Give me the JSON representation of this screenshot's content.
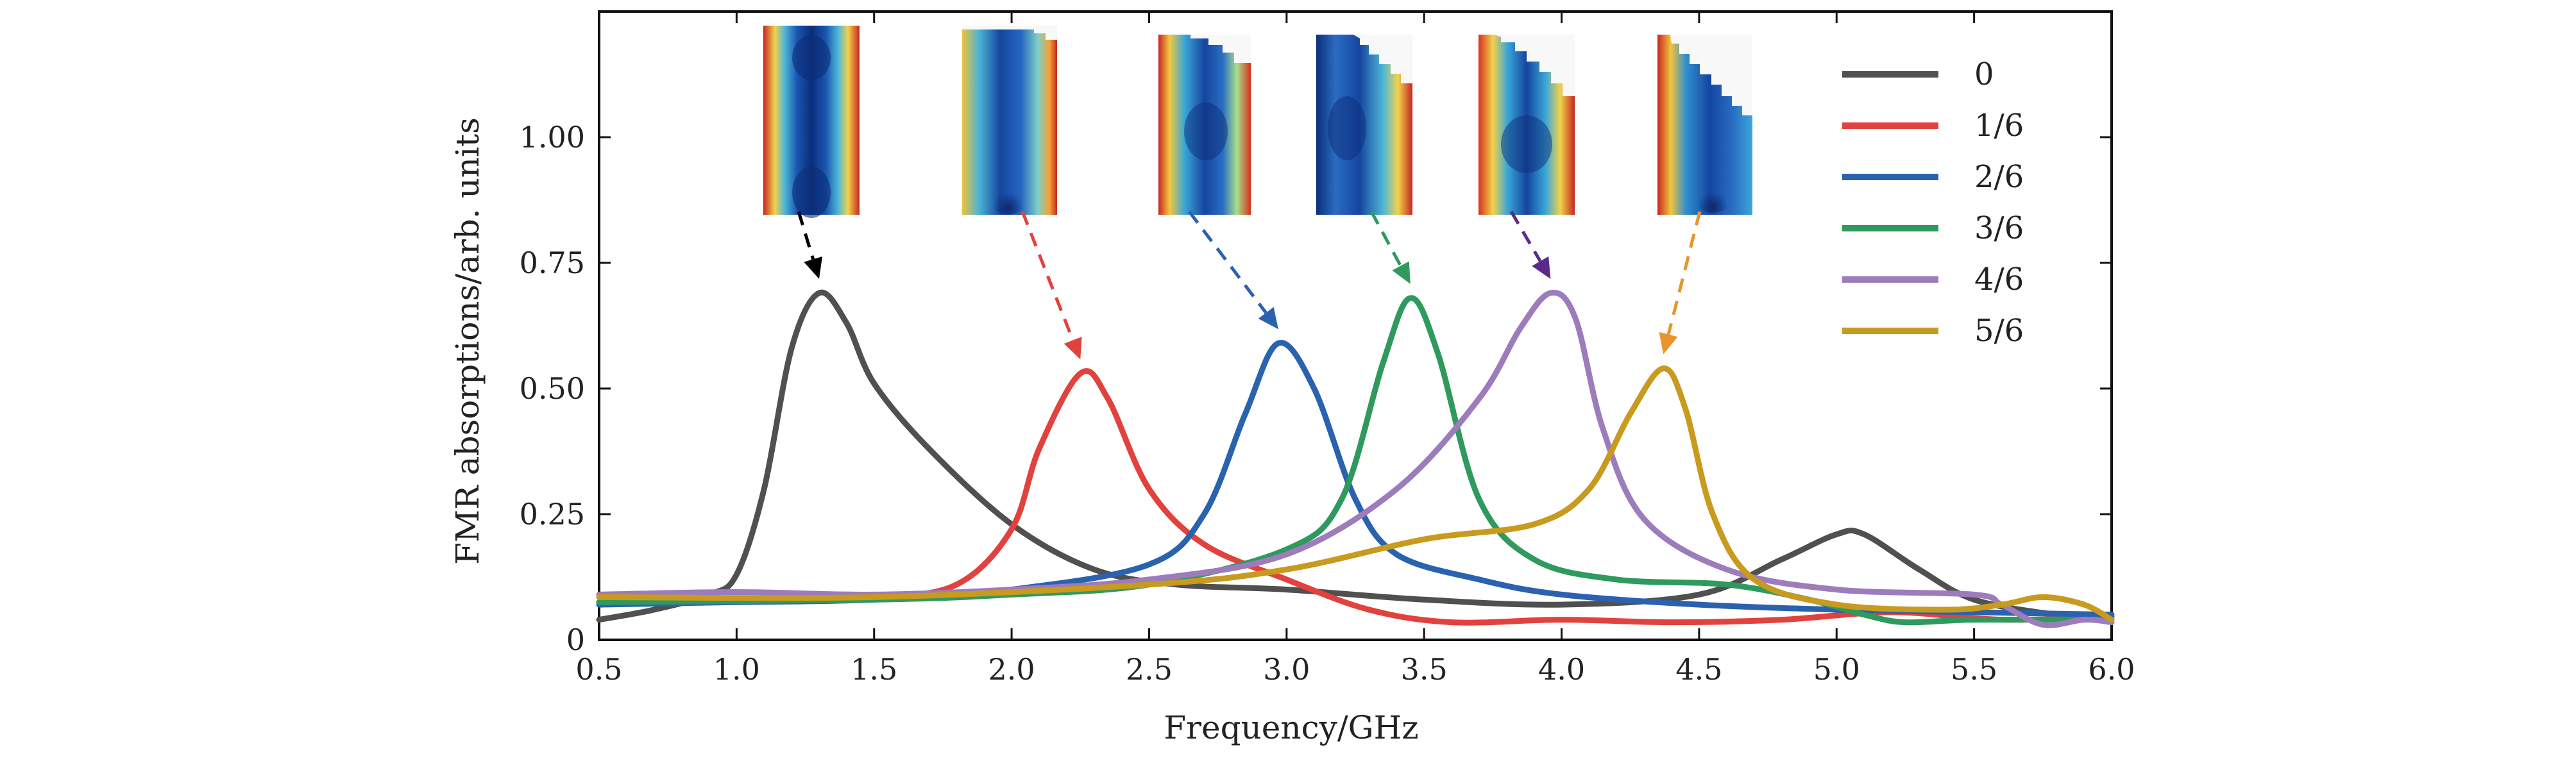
{
  "chart_data": {
    "type": "line",
    "title": "",
    "xlabel": "Frequency/GHz",
    "ylabel": "FMR absorptions/arb. units",
    "xlim": [
      0.5,
      6.0
    ],
    "ylim": [
      0,
      1.25
    ],
    "xticks": [
      "0.5",
      "1.0",
      "1.5",
      "2.0",
      "2.5",
      "3.0",
      "3.5",
      "4.0",
      "4.5",
      "5.0",
      "5.5",
      "6.0"
    ],
    "yticks": [
      "0",
      "0.25",
      "0.50",
      "0.75",
      "1.00"
    ],
    "legend_position": "top-right",
    "series": [
      {
        "name": "0",
        "color": "#505050",
        "points": [
          [
            0.5,
            0.04
          ],
          [
            0.7,
            0.06
          ],
          [
            0.9,
            0.09
          ],
          [
            1.0,
            0.13
          ],
          [
            1.1,
            0.3
          ],
          [
            1.2,
            0.58
          ],
          [
            1.3,
            0.69
          ],
          [
            1.4,
            0.63
          ],
          [
            1.5,
            0.51
          ],
          [
            1.7,
            0.38
          ],
          [
            2.0,
            0.23
          ],
          [
            2.3,
            0.14
          ],
          [
            2.6,
            0.11
          ],
          [
            3.0,
            0.1
          ],
          [
            3.5,
            0.08
          ],
          [
            4.0,
            0.07
          ],
          [
            4.5,
            0.09
          ],
          [
            4.8,
            0.16
          ],
          [
            5.0,
            0.21
          ],
          [
            5.1,
            0.21
          ],
          [
            5.3,
            0.14
          ],
          [
            5.5,
            0.08
          ],
          [
            5.8,
            0.05
          ],
          [
            6.0,
            0.045
          ]
        ]
      },
      {
        "name": "1/6",
        "color": "#e2423e",
        "points": [
          [
            0.5,
            0.075
          ],
          [
            1.0,
            0.08
          ],
          [
            1.5,
            0.085
          ],
          [
            1.8,
            0.11
          ],
          [
            2.0,
            0.22
          ],
          [
            2.1,
            0.38
          ],
          [
            2.25,
            0.53
          ],
          [
            2.35,
            0.48
          ],
          [
            2.5,
            0.3
          ],
          [
            2.7,
            0.19
          ],
          [
            3.0,
            0.12
          ],
          [
            3.3,
            0.06
          ],
          [
            3.6,
            0.035
          ],
          [
            4.0,
            0.04
          ],
          [
            4.4,
            0.035
          ],
          [
            4.8,
            0.04
          ],
          [
            5.2,
            0.055
          ],
          [
            5.6,
            0.04
          ],
          [
            6.0,
            0.045
          ]
        ]
      },
      {
        "name": "2/6",
        "color": "#2a62b0",
        "points": [
          [
            0.5,
            0.07
          ],
          [
            1.0,
            0.075
          ],
          [
            1.5,
            0.08
          ],
          [
            2.0,
            0.1
          ],
          [
            2.5,
            0.15
          ],
          [
            2.7,
            0.25
          ],
          [
            2.85,
            0.45
          ],
          [
            2.97,
            0.59
          ],
          [
            3.1,
            0.5
          ],
          [
            3.25,
            0.28
          ],
          [
            3.4,
            0.17
          ],
          [
            3.7,
            0.12
          ],
          [
            4.0,
            0.09
          ],
          [
            4.5,
            0.07
          ],
          [
            5.0,
            0.06
          ],
          [
            5.5,
            0.055
          ],
          [
            6.0,
            0.05
          ]
        ]
      },
      {
        "name": "3/6",
        "color": "#2f9a5e",
        "points": [
          [
            0.5,
            0.075
          ],
          [
            1.5,
            0.08
          ],
          [
            2.0,
            0.09
          ],
          [
            2.5,
            0.11
          ],
          [
            3.0,
            0.18
          ],
          [
            3.2,
            0.28
          ],
          [
            3.35,
            0.55
          ],
          [
            3.45,
            0.68
          ],
          [
            3.55,
            0.57
          ],
          [
            3.7,
            0.28
          ],
          [
            3.9,
            0.16
          ],
          [
            4.2,
            0.12
          ],
          [
            4.6,
            0.11
          ],
          [
            4.9,
            0.08
          ],
          [
            5.1,
            0.05
          ],
          [
            5.25,
            0.035
          ],
          [
            5.5,
            0.04
          ],
          [
            6.0,
            0.04
          ]
        ]
      },
      {
        "name": "4/6",
        "color": "#9d7cbc",
        "points": [
          [
            0.5,
            0.09
          ],
          [
            1.0,
            0.095
          ],
          [
            1.5,
            0.09
          ],
          [
            2.0,
            0.1
          ],
          [
            2.5,
            0.12
          ],
          [
            3.0,
            0.17
          ],
          [
            3.4,
            0.3
          ],
          [
            3.7,
            0.48
          ],
          [
            3.85,
            0.62
          ],
          [
            3.96,
            0.69
          ],
          [
            4.05,
            0.64
          ],
          [
            4.15,
            0.42
          ],
          [
            4.3,
            0.24
          ],
          [
            4.6,
            0.14
          ],
          [
            5.0,
            0.1
          ],
          [
            5.5,
            0.09
          ],
          [
            5.6,
            0.07
          ],
          [
            5.75,
            0.03
          ],
          [
            5.9,
            0.04
          ],
          [
            6.0,
            0.035
          ]
        ]
      },
      {
        "name": "5/6",
        "color": "#c89a1e",
        "points": [
          [
            0.5,
            0.085
          ],
          [
            1.5,
            0.085
          ],
          [
            2.5,
            0.11
          ],
          [
            3.0,
            0.14
          ],
          [
            3.5,
            0.2
          ],
          [
            3.9,
            0.23
          ],
          [
            4.1,
            0.3
          ],
          [
            4.25,
            0.45
          ],
          [
            4.37,
            0.54
          ],
          [
            4.45,
            0.46
          ],
          [
            4.55,
            0.25
          ],
          [
            4.7,
            0.12
          ],
          [
            5.0,
            0.07
          ],
          [
            5.4,
            0.06
          ],
          [
            5.6,
            0.07
          ],
          [
            5.75,
            0.085
          ],
          [
            5.9,
            0.07
          ],
          [
            6.0,
            0.04
          ]
        ]
      }
    ],
    "annotations": [
      {
        "series": "0",
        "color": "#000000",
        "x": 1.3,
        "y": 0.69
      },
      {
        "series": "1/6",
        "color": "#e2423e",
        "x": 2.25,
        "y": 0.53
      },
      {
        "series": "2/6",
        "color": "#2a62b0",
        "x": 2.97,
        "y": 0.59
      },
      {
        "series": "3/6",
        "color": "#2f9a5e",
        "x": 3.45,
        "y": 0.68
      },
      {
        "series": "4/6",
        "color": "#5a2a86",
        "x": 3.96,
        "y": 0.69
      },
      {
        "series": "5/6",
        "color": "#e8962a",
        "x": 4.37,
        "y": 0.54
      }
    ]
  }
}
